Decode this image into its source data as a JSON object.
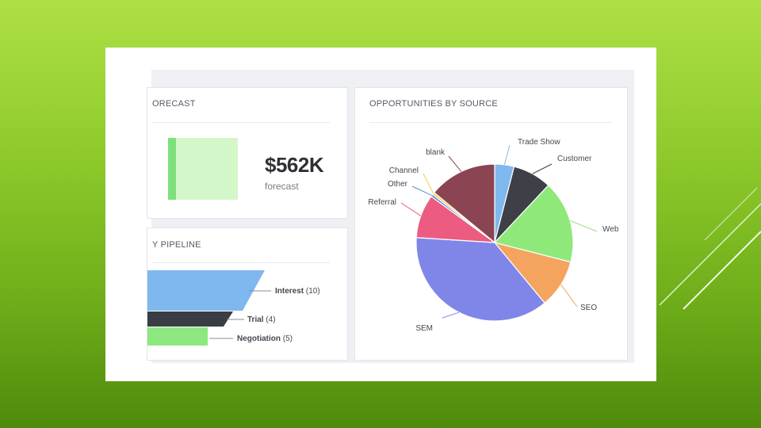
{
  "forecast": {
    "title": "ORECAST",
    "value": "$562K",
    "subtitle": "forecast",
    "bar_color": "#d4f7c9",
    "bar_accent": "#7ee07a"
  },
  "pipeline": {
    "title": "Y PIPELINE",
    "stages": [
      {
        "label": "Interest",
        "count": "(10)",
        "color": "#7fb8ef"
      },
      {
        "label": "Trial",
        "count": "(4)",
        "color": "#3b3d44"
      },
      {
        "label": "Negotiation",
        "count": "(5)",
        "color": "#8ee880"
      }
    ]
  },
  "opportunities": {
    "title": "OPPORTUNITIES BY SOURCE"
  },
  "chart_data": {
    "type": "pie",
    "title": "OPPORTUNITIES BY SOURCE",
    "slices": [
      {
        "label": "Trade Show",
        "value": 4,
        "color": "#7fb8ef"
      },
      {
        "label": "Customer",
        "value": 8,
        "color": "#3e3f47"
      },
      {
        "label": "Web",
        "value": 17,
        "color": "#8ee87a"
      },
      {
        "label": "SEO",
        "value": 10,
        "color": "#f4a45e"
      },
      {
        "label": "SEM",
        "value": 37,
        "color": "#8086e8"
      },
      {
        "label": "Referral",
        "value": 9,
        "color": "#ec5c80"
      },
      {
        "label": "Other",
        "value": 0.5,
        "color": "#5a8fd0"
      },
      {
        "label": "Channel",
        "value": 0.5,
        "color": "#f2d04a"
      },
      {
        "label": "blank",
        "value": 14,
        "color": "#8a4452"
      }
    ]
  }
}
